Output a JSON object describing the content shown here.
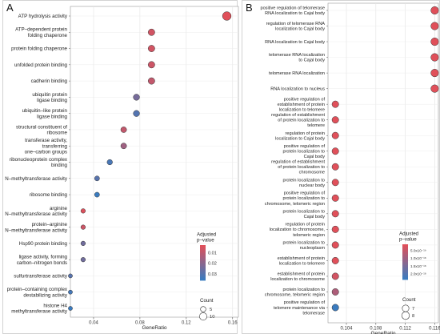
{
  "chart_data": [
    {
      "panel_label": "A",
      "type": "scatter",
      "title": "",
      "xlabel": "GeneRatio",
      "ylabel": "",
      "x_ticks": [
        0.04,
        0.08,
        0.12,
        0.16
      ],
      "xlim": [
        0.02,
        0.165
      ],
      "grid": true,
      "categories": [
        "ATP hydrolysis activity",
        "ATP–dependent protein\nfolding chaperone",
        "protein folding chaperone",
        "unfolded protein binding",
        "cadherin binding",
        "ubiquitin protein\nligase binding",
        "ubiquitin–like protein\nligase binding",
        "structural constituent of\nribosome",
        "transferase activity,\ntransferring\none–carbon groups",
        "ribonucleoprotein complex\nbinding",
        "N–methyltransferase activity",
        "ribosome binding",
        "arginine\nN–methyltransferase activity",
        "protein–arginine\nN–methyltransferase activity",
        "Hsp90 protein binding",
        "ligase activity, forming\ncarbon–nitrogen bonds",
        "sulfurtransferase activity",
        "protein–containing complex\ndestabilizing activity",
        "histone H4\nmethyltransferase activity"
      ],
      "x": [
        0.155,
        0.09,
        0.09,
        0.09,
        0.09,
        0.077,
        0.077,
        0.066,
        0.066,
        0.054,
        0.043,
        0.043,
        0.031,
        0.031,
        0.031,
        0.031,
        0.02,
        0.02,
        0.02
      ],
      "padj": [
        0.003,
        0.006,
        0.006,
        0.007,
        0.009,
        0.024,
        0.031,
        0.009,
        0.016,
        0.033,
        0.03,
        0.036,
        0.004,
        0.007,
        0.025,
        0.025,
        0.03,
        0.034,
        0.036
      ],
      "count": [
        13,
        8,
        8,
        8,
        8,
        7,
        7,
        6,
        6,
        5,
        4,
        4,
        3,
        3,
        3,
        3,
        2,
        2,
        2
      ],
      "legend": {
        "color_title": "Adjusted\np–value",
        "color_ticks": [
          "0.01",
          "0.02",
          "0.03"
        ],
        "color_tick_values": [
          0.01,
          0.02,
          0.03
        ],
        "color_range": [
          0.003,
          0.036
        ],
        "size_title": "Count",
        "size_labels": [
          "5",
          "10"
        ],
        "size_values": [
          5,
          10
        ],
        "placement": "right"
      },
      "colors": {
        "high": "#e0505a",
        "low": "#3a7bbf"
      }
    },
    {
      "panel_label": "B",
      "type": "scatter",
      "title": "",
      "xlabel": "GeneRatio",
      "ylabel": "",
      "x_ticks": [
        0.104,
        0.108,
        0.112,
        0.116
      ],
      "xlim": [
        0.1015,
        0.1165
      ],
      "grid": true,
      "categories": [
        "positive regulation of telomerase\nRNA localization to Cajal body",
        "regulation of telomerase RNA\nlocalization to Cajal body",
        "RNA localization to Cajal body",
        "telomerase RNA localization\nto Cajal body",
        "telomerase RNA localization",
        "RNA localization to nucleus",
        "positive regulation of\nestablishment of protein\nlocalization to telomere",
        "regulation of establishment\nof protein localization to\ntelomere",
        "regulation of protein\nlocalization to Cajal body",
        "positive regulation of\nprotein localization to\nCajal body",
        "regulation of establishment\nof protein localization to\nchromosome",
        "protein localization to\nnuclear body",
        "positive regulation of\nprotein localization to\nchromosome, telomeric region",
        "protein localization to\nCajal body",
        "regulation of protein\nlocalization to chromosome,\ntelomeric region",
        "protein localization to\nnucleoplasm",
        "establishment of protein\nlocalization to telomere",
        "establishment of protein\nlocalization to chromosome",
        "protein localization to\nchromosome, telomeric region",
        "positive regulation of\ntelomere maintenance via\ntelomerase"
      ],
      "x": [
        0.116,
        0.116,
        0.116,
        0.116,
        0.116,
        0.116,
        0.1025,
        0.1025,
        0.1025,
        0.1025,
        0.1025,
        0.1025,
        0.1025,
        0.1025,
        0.1025,
        0.1025,
        0.1025,
        0.1025,
        0.1025,
        0.1025
      ],
      "padj": [
        1e-19,
        1e-19,
        1e-19,
        1e-19,
        1e-19,
        1e-19,
        1e-19,
        1e-19,
        1e-19,
        1e-19,
        1e-19,
        1e-19,
        1e-19,
        1e-19,
        1e-19,
        1e-19,
        1e-19,
        3e-19,
        8e-19,
        2.4e-18
      ],
      "count": [
        8,
        8,
        8,
        8,
        8,
        8,
        7,
        7,
        7,
        7,
        7,
        7,
        7,
        7,
        7,
        7,
        7,
        7,
        7,
        7
      ],
      "legend": {
        "color_title": "Adjusted\np–value",
        "color_ticks": [
          "5.0x10⁻¹⁹",
          "1.0x10⁻¹⁸",
          "1.5x10⁻¹⁸",
          "2.0x10⁻¹⁸"
        ],
        "color_tick_values": [
          5e-19,
          1e-18,
          1.5e-18,
          2e-18
        ],
        "color_range": [
          1e-19,
          2.4e-18
        ],
        "size_title": "Count",
        "size_labels": [
          "7",
          "8"
        ],
        "size_values": [
          7,
          8
        ],
        "placement": "right"
      },
      "colors": {
        "high": "#e0505a",
        "low": "#3a7bbf"
      }
    }
  ]
}
